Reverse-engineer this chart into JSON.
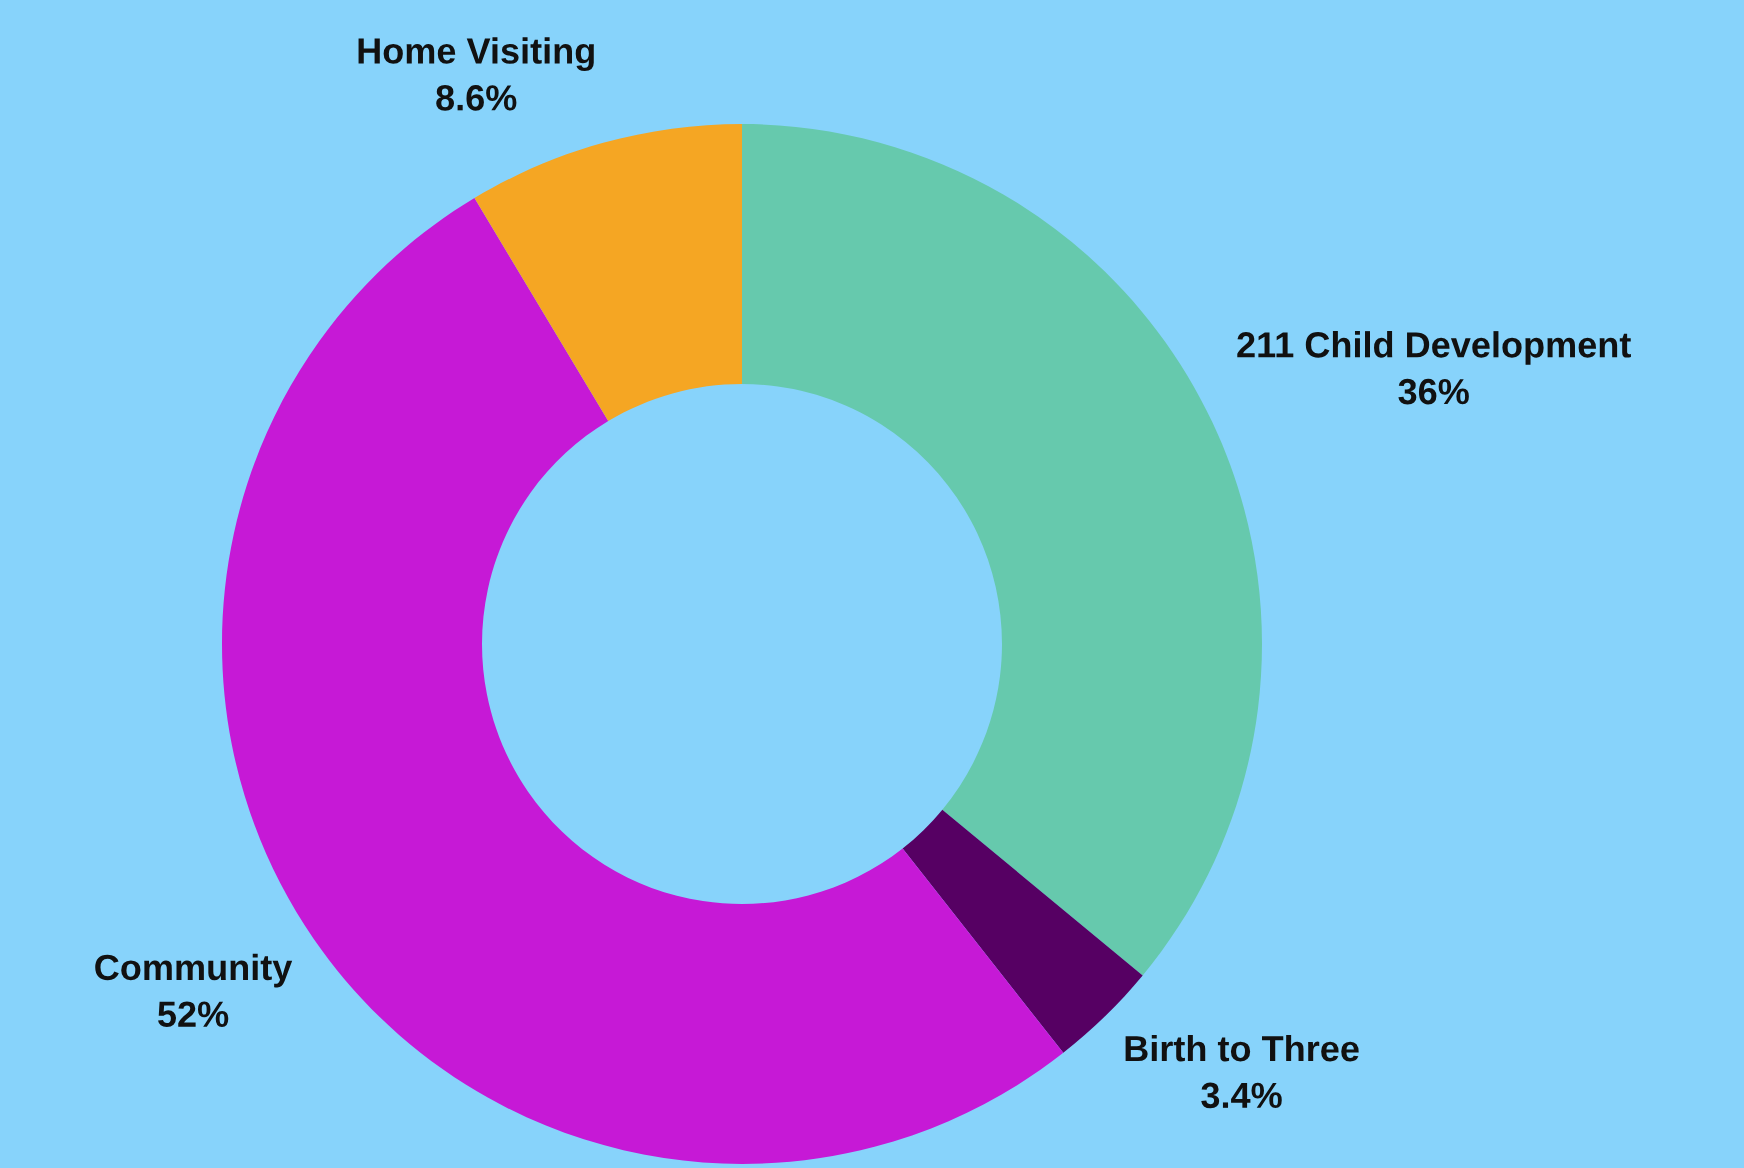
{
  "chart_data": {
    "type": "donut",
    "categories": [
      "211 Child Development",
      "Birth to Three",
      "Community",
      "Home Visiting"
    ],
    "values": [
      36,
      3.4,
      52,
      8.6
    ],
    "value_labels": [
      "36%",
      "3.4%",
      "52%",
      "8.6%"
    ],
    "colors": [
      "#66c9ad",
      "#560063",
      "#c619d6",
      "#f5a623"
    ],
    "legend": false
  }
}
